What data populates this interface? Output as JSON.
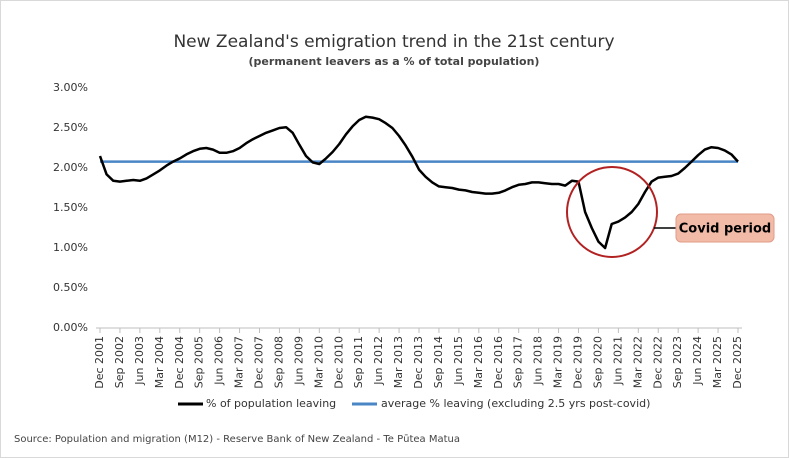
{
  "chart_data": {
    "type": "line",
    "title": "New Zealand's emigration trend in the 21st century",
    "subtitle": "(permanent leavers as a % of total population)",
    "categories": [
      "Dec 2001",
      null,
      null,
      "Sep 2002",
      null,
      null,
      "Jun 2003",
      null,
      null,
      "Mar 2004",
      null,
      null,
      "Dec 2004",
      null,
      null,
      "Sep 2005",
      null,
      null,
      "Jun 2006",
      null,
      null,
      "Mar 2007",
      null,
      null,
      "Dec 2007",
      null,
      null,
      "Sep 2008",
      null,
      null,
      "Jun 2009",
      null,
      null,
      "Mar 2010",
      null,
      null,
      "Dec 2010",
      null,
      null,
      "Sep 2011",
      null,
      null,
      "Jun 2012",
      null,
      null,
      "Mar 2013",
      null,
      null,
      "Dec 2013",
      null,
      null,
      "Sep 2014",
      null,
      null,
      "Jun 2015",
      null,
      null,
      "Mar 2016",
      null,
      null,
      "Dec 2016",
      null,
      null,
      "Sep 2017",
      null,
      null,
      "Jun 2018",
      null,
      null,
      "Mar 2019",
      null,
      null,
      "Dec 2019",
      null,
      null,
      "Sep 2020",
      null,
      null,
      "Jun 2021",
      null,
      null,
      "Mar 2022",
      null,
      null,
      "Dec 2022",
      null,
      null,
      "Sep 2023",
      null,
      null,
      "Jun 2024",
      null,
      null,
      "Mar 2025",
      null,
      null,
      "Dec 2025"
    ],
    "series": [
      {
        "name": "% of population leaving",
        "color": "#000000",
        "values": [
          2.15,
          1.92,
          1.84,
          1.83,
          1.84,
          1.85,
          1.84,
          1.87,
          1.92,
          1.97,
          2.03,
          2.08,
          2.12,
          2.17,
          2.21,
          2.24,
          2.25,
          2.23,
          2.19,
          2.19,
          2.21,
          2.25,
          2.31,
          2.36,
          2.4,
          2.44,
          2.47,
          2.5,
          2.51,
          2.44,
          2.29,
          2.15,
          2.07,
          2.05,
          2.12,
          2.2,
          2.3,
          2.42,
          2.52,
          2.6,
          2.64,
          2.63,
          2.61,
          2.56,
          2.5,
          2.4,
          2.28,
          2.14,
          1.98,
          1.89,
          1.82,
          1.77,
          1.76,
          1.75,
          1.73,
          1.72,
          1.7,
          1.69,
          1.68,
          1.68,
          1.69,
          1.72,
          1.76,
          1.79,
          1.8,
          1.82,
          1.82,
          1.81,
          1.8,
          1.8,
          1.78,
          1.84,
          1.83,
          1.45,
          1.25,
          1.08,
          1.0,
          1.3,
          1.33,
          1.38,
          1.45,
          1.55,
          1.7,
          1.83,
          1.88,
          1.89,
          1.9,
          1.93,
          2.0,
          2.08,
          2.16,
          2.23,
          2.26,
          2.25,
          2.22,
          2.17,
          2.08
        ]
      }
    ],
    "reference_line": {
      "name": "average % leaving (excluding 2.5 yrs post-covid)",
      "color": "#4a86c5",
      "value": 2.08
    },
    "ylim": [
      0,
      3
    ],
    "yticks": [
      {
        "value": 0,
        "label": "0.00%"
      },
      {
        "value": 0.5,
        "label": "0.50%"
      },
      {
        "value": 1,
        "label": "1.00%"
      },
      {
        "value": 1.5,
        "label": "1.50%"
      },
      {
        "value": 2,
        "label": "2.00%"
      },
      {
        "value": 2.5,
        "label": "2.50%"
      },
      {
        "value": 3,
        "label": "3.00%"
      }
    ],
    "annotation": "Covid period",
    "source": "Source: Population and migration (M12) - Reserve Bank of New Zealand - Te Pūtea Matua"
  }
}
